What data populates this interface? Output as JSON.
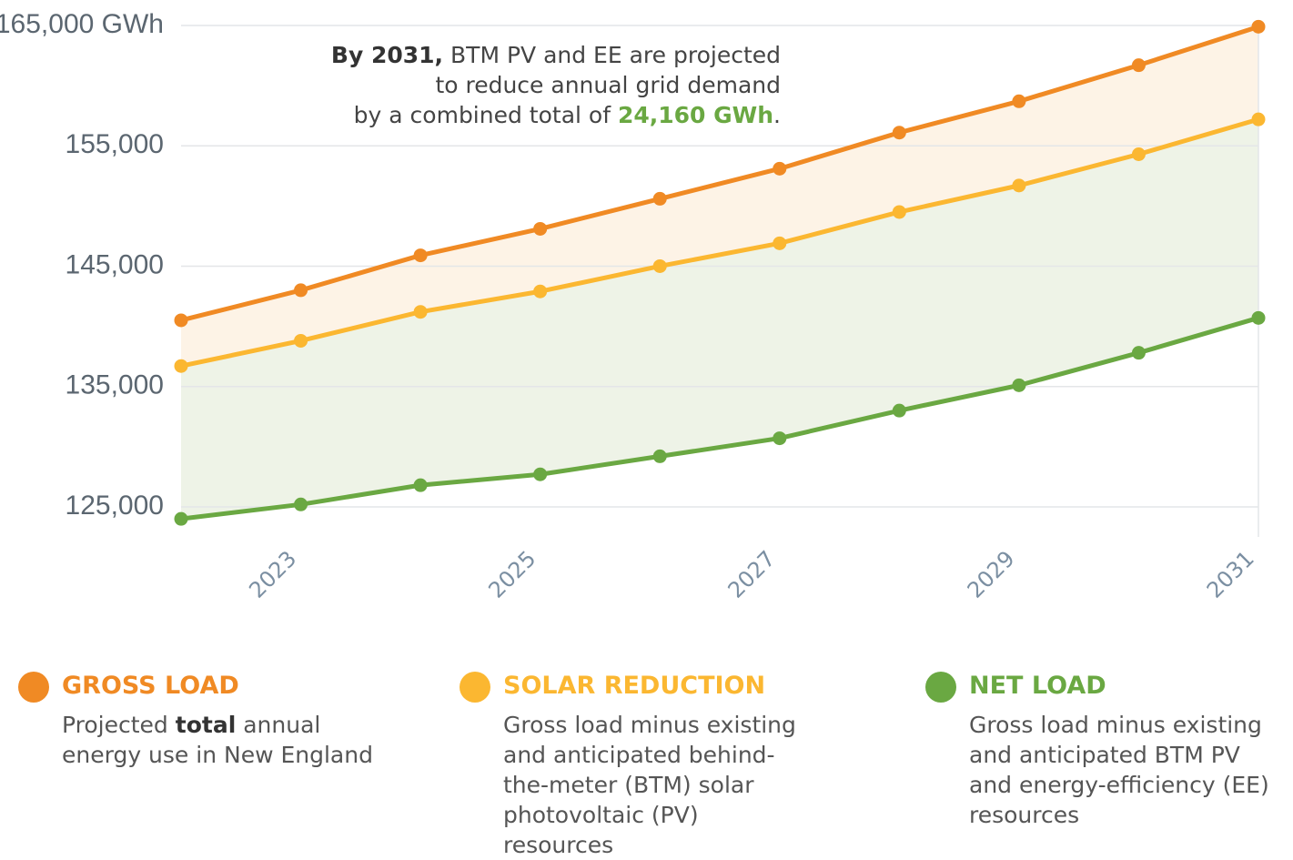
{
  "chart_data": {
    "type": "line",
    "annotation": {
      "lead": "By 2031,",
      "lines": [
        "BTM PV and EE are projected",
        "to reduce annual grid demand",
        "by a combined total of"
      ],
      "highlight": "24,160 GWh",
      "end": "."
    },
    "x": [
      2022,
      2023,
      2024,
      2025,
      2026,
      2027,
      2028,
      2029,
      2030,
      2031
    ],
    "xlim": [
      2022,
      2031
    ],
    "xticks": [
      2023,
      2025,
      2027,
      2029,
      2031
    ],
    "ylim": [
      122500,
      165000
    ],
    "yticks": [
      {
        "value": 125000,
        "label": "125,000"
      },
      {
        "value": 135000,
        "label": "135,000"
      },
      {
        "value": 145000,
        "label": "145,000"
      },
      {
        "value": 155000,
        "label": "155,000"
      },
      {
        "value": 165000,
        "label": "165,000 GWh"
      }
    ],
    "grid": true,
    "series": [
      {
        "name": "GROSS LOAD",
        "color": "#f08a24",
        "fill": "#fdf3e6",
        "description": [
          "Projected",
          "total",
          "annual energy use in New England"
        ],
        "values": [
          140500,
          143000,
          145900,
          148100,
          150600,
          153100,
          156100,
          158700,
          161700,
          164900
        ]
      },
      {
        "name": "SOLAR REDUCTION",
        "color": "#fbb731",
        "fill": "#eef3e7",
        "description": [
          "Gross load minus existing and anticipated behind-the-meter (BTM) solar photovoltaic (PV) resources"
        ],
        "values": [
          136700,
          138800,
          141200,
          142900,
          145000,
          146900,
          149500,
          151700,
          154300,
          157200
        ]
      },
      {
        "name": "NET LOAD",
        "color": "#6aa842",
        "description": [
          "Gross load minus existing and anticipated BTM PV and energy-efficiency (EE) resources"
        ],
        "values": [
          124000,
          125200,
          126800,
          127700,
          129200,
          130700,
          133000,
          135100,
          137800,
          140700
        ]
      }
    ]
  }
}
